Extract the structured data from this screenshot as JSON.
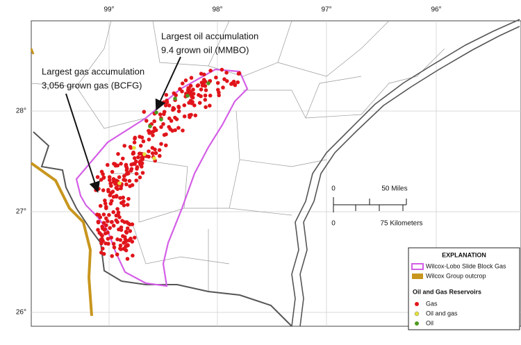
{
  "map": {
    "longitude_labels": [
      "99°",
      "98°",
      "97°",
      "96°"
    ],
    "latitude_labels": [
      "28°",
      "27°",
      "26°"
    ],
    "annotations": {
      "oil": [
        "Largest oil accumulation",
        "9.4 grown oil (MMBO)"
      ],
      "gas": [
        "Largest gas accumulation",
        "3,056 grown gas (BCFG)"
      ]
    },
    "scale_bar": {
      "miles_zero": "0",
      "miles_label": "50 Miles",
      "km_zero": "0",
      "km_label": "75 Kilometers"
    },
    "legend": {
      "title": "EXPLANATION",
      "items": [
        "Wilcox-Lobo Slide Block Gas",
        "Wilcox Group outcrop"
      ],
      "subtitle": "Oil and Gas Reservoirs",
      "reservoirs": [
        "Gas",
        "Oil and gas",
        "Oil"
      ]
    }
  }
}
